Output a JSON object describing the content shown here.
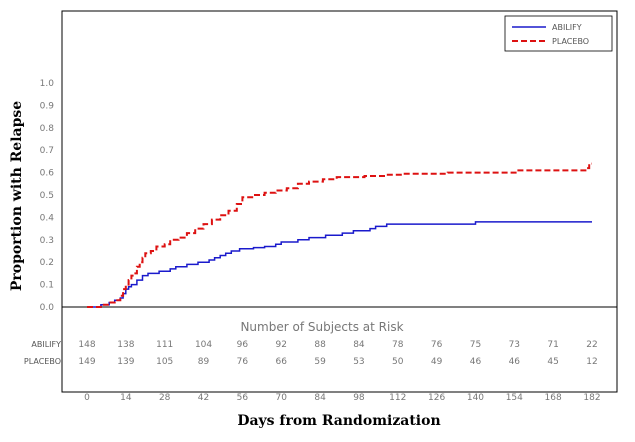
{
  "chart_data": {
    "type": "line",
    "step": true,
    "xlabel": "Days from Randomization",
    "ylabel": "Proportion with Relapse",
    "xlim": [
      0,
      182
    ],
    "ylim": [
      0,
      1.0
    ],
    "x_ticks": [
      0,
      14,
      28,
      42,
      56,
      70,
      84,
      98,
      112,
      126,
      140,
      154,
      168,
      182
    ],
    "y_ticks": [
      "0.0",
      "0.1",
      "0.2",
      "0.3",
      "0.4",
      "0.5",
      "0.6",
      "0.7",
      "0.8",
      "0.9",
      "1.0"
    ],
    "legend_position": "top-right",
    "series": [
      {
        "name": "ABILIFY",
        "color": "#1a1acc",
        "dash": "solid",
        "points": [
          [
            0,
            0
          ],
          [
            3,
            0
          ],
          [
            5,
            0.01
          ],
          [
            8,
            0.02
          ],
          [
            10,
            0.03
          ],
          [
            12,
            0.04
          ],
          [
            13,
            0.06
          ],
          [
            14,
            0.08
          ],
          [
            15,
            0.09
          ],
          [
            16,
            0.1
          ],
          [
            18,
            0.12
          ],
          [
            20,
            0.14
          ],
          [
            22,
            0.15
          ],
          [
            26,
            0.16
          ],
          [
            30,
            0.17
          ],
          [
            32,
            0.18
          ],
          [
            36,
            0.19
          ],
          [
            40,
            0.2
          ],
          [
            44,
            0.21
          ],
          [
            46,
            0.22
          ],
          [
            48,
            0.23
          ],
          [
            50,
            0.24
          ],
          [
            52,
            0.25
          ],
          [
            55,
            0.26
          ],
          [
            60,
            0.265
          ],
          [
            64,
            0.27
          ],
          [
            68,
            0.28
          ],
          [
            70,
            0.29
          ],
          [
            76,
            0.3
          ],
          [
            80,
            0.31
          ],
          [
            86,
            0.32
          ],
          [
            92,
            0.33
          ],
          [
            96,
            0.34
          ],
          [
            102,
            0.35
          ],
          [
            104,
            0.36
          ],
          [
            108,
            0.37
          ],
          [
            140,
            0.38
          ],
          [
            182,
            0.38
          ]
        ]
      },
      {
        "name": "PLACEBO",
        "color": "#dd1111",
        "dash": "dashed",
        "points": [
          [
            0,
            0
          ],
          [
            3,
            0
          ],
          [
            5,
            0.01
          ],
          [
            8,
            0.02
          ],
          [
            10,
            0.03
          ],
          [
            12,
            0.05
          ],
          [
            13,
            0.08
          ],
          [
            14,
            0.1
          ],
          [
            15,
            0.12
          ],
          [
            16,
            0.14
          ],
          [
            17,
            0.15
          ],
          [
            18,
            0.18
          ],
          [
            19,
            0.2
          ],
          [
            20,
            0.22
          ],
          [
            21,
            0.24
          ],
          [
            23,
            0.25
          ],
          [
            25,
            0.27
          ],
          [
            28,
            0.28
          ],
          [
            30,
            0.3
          ],
          [
            33,
            0.31
          ],
          [
            36,
            0.33
          ],
          [
            39,
            0.35
          ],
          [
            42,
            0.37
          ],
          [
            45,
            0.39
          ],
          [
            48,
            0.41
          ],
          [
            51,
            0.43
          ],
          [
            54,
            0.46
          ],
          [
            56,
            0.49
          ],
          [
            60,
            0.5
          ],
          [
            64,
            0.51
          ],
          [
            68,
            0.52
          ],
          [
            72,
            0.53
          ],
          [
            76,
            0.55
          ],
          [
            80,
            0.56
          ],
          [
            85,
            0.57
          ],
          [
            90,
            0.58
          ],
          [
            100,
            0.585
          ],
          [
            108,
            0.59
          ],
          [
            114,
            0.595
          ],
          [
            130,
            0.6
          ],
          [
            155,
            0.61
          ],
          [
            180,
            0.62
          ],
          [
            181,
            0.64
          ],
          [
            182,
            0.64
          ]
        ]
      }
    ],
    "risk_table": {
      "title": "Number of Subjects at Risk",
      "times": [
        0,
        14,
        28,
        42,
        56,
        70,
        84,
        98,
        112,
        126,
        140,
        154,
        168,
        182
      ],
      "rows": [
        {
          "label": "ABILIFY",
          "counts": [
            "148",
            "138",
            "111",
            "104",
            "96",
            "92",
            "88",
            "84",
            "78",
            "76",
            "75",
            "73",
            "71",
            "22"
          ]
        },
        {
          "label": "PLACEBO",
          "counts": [
            "149",
            "139",
            "105",
            "89",
            "76",
            "66",
            "59",
            "53",
            "50",
            "49",
            "46",
            "46",
            "45",
            "12"
          ]
        }
      ]
    }
  }
}
